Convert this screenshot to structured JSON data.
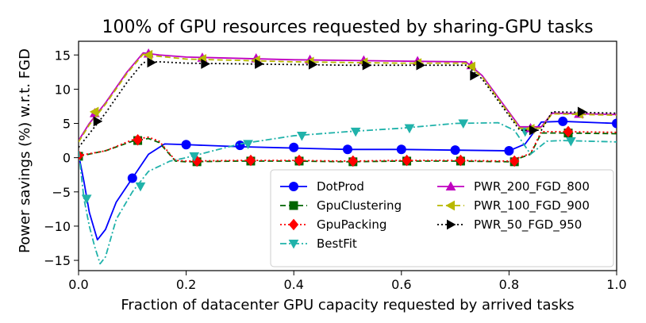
{
  "chart_data": {
    "type": "line",
    "title": "100% of GPU resources requested by sharing-GPU tasks",
    "xlabel": "Fraction of datacenter GPU capacity requested by arrived tasks",
    "ylabel": "Power savings (%) w.r.t. FGD",
    "xlim": [
      0,
      1.0
    ],
    "ylim": [
      -16.5,
      17
    ],
    "xticks": [
      0.0,
      0.2,
      0.4,
      0.6,
      0.8,
      1.0
    ],
    "xtick_labels": [
      "0.0",
      "0.2",
      "0.4",
      "0.6",
      "0.8",
      "1.0"
    ],
    "yticks": [
      -15,
      -10,
      -5,
      0,
      5,
      10,
      15
    ],
    "ytick_labels": [
      "−15",
      "−10",
      "−5",
      "0",
      "5",
      "10",
      "15"
    ],
    "legend_position": "lower-right",
    "series": [
      {
        "name": "DotProd",
        "color": "#0000ff",
        "dash": "solid",
        "marker": "circle",
        "x": [
          0.0,
          0.01,
          0.02,
          0.035,
          0.05,
          0.07,
          0.1,
          0.13,
          0.16,
          0.2,
          0.3,
          0.4,
          0.5,
          0.6,
          0.7,
          0.8,
          0.83,
          0.86,
          0.9,
          1.0
        ],
        "y": [
          0.5,
          -3.5,
          -8.0,
          -12.0,
          -10.5,
          -6.5,
          -3.0,
          0.5,
          2.0,
          1.9,
          1.6,
          1.4,
          1.2,
          1.2,
          1.1,
          1.0,
          2.0,
          5.2,
          5.3,
          5.0
        ],
        "markers_x": [
          0.1,
          0.2,
          0.3,
          0.4,
          0.5,
          0.6,
          0.7,
          0.8,
          0.9,
          1.0
        ],
        "markers_y": [
          -3.0,
          1.9,
          1.8,
          1.5,
          1.2,
          1.2,
          1.1,
          1.0,
          5.3,
          5.0
        ]
      },
      {
        "name": "GpuClustering",
        "color": "#006400",
        "dash": "dashed",
        "marker": "square",
        "x": [
          0.0,
          0.05,
          0.1,
          0.13,
          0.15,
          0.18,
          0.2,
          0.3,
          0.4,
          0.5,
          0.6,
          0.7,
          0.8,
          0.84,
          0.86,
          0.9,
          1.0
        ],
        "y": [
          0.2,
          1.0,
          2.4,
          2.8,
          2.2,
          -0.5,
          -0.6,
          -0.5,
          -0.5,
          -0.6,
          -0.5,
          -0.5,
          -0.6,
          0.5,
          3.6,
          3.6,
          3.5
        ],
        "markers_x": [
          0.0,
          0.11,
          0.22,
          0.32,
          0.41,
          0.51,
          0.61,
          0.71,
          0.81,
          0.91
        ],
        "markers_y": [
          0.2,
          2.5,
          -0.6,
          -0.5,
          -0.5,
          -0.6,
          -0.5,
          -0.5,
          -0.6,
          3.6
        ]
      },
      {
        "name": "GpuPacking",
        "color": "#ff0000",
        "dash": "dotted",
        "marker": "diamond",
        "x": [
          0.0,
          0.05,
          0.1,
          0.13,
          0.15,
          0.18,
          0.2,
          0.3,
          0.4,
          0.5,
          0.6,
          0.7,
          0.8,
          0.84,
          0.86,
          0.9,
          1.0
        ],
        "y": [
          0.3,
          1.0,
          2.6,
          3.0,
          2.4,
          -0.4,
          -0.5,
          -0.4,
          -0.4,
          -0.5,
          -0.4,
          -0.4,
          -0.5,
          0.6,
          3.8,
          3.8,
          3.7
        ],
        "markers_x": [
          0.0,
          0.11,
          0.22,
          0.32,
          0.41,
          0.51,
          0.61,
          0.71,
          0.81,
          0.91
        ],
        "markers_y": [
          0.3,
          2.6,
          -0.5,
          -0.4,
          -0.4,
          -0.5,
          -0.4,
          -0.4,
          -0.5,
          3.8
        ]
      },
      {
        "name": "BestFit",
        "color": "#20b2aa",
        "dash": "dashdot",
        "marker": "triangle-down",
        "x": [
          0.0,
          0.01,
          0.02,
          0.03,
          0.04,
          0.05,
          0.07,
          0.1,
          0.13,
          0.17,
          0.2,
          0.3,
          0.4,
          0.5,
          0.6,
          0.7,
          0.78,
          0.81,
          0.84,
          0.87,
          0.9,
          1.0
        ],
        "y": [
          1.0,
          -6.0,
          -10.0,
          -13.0,
          -15.5,
          -14.5,
          -9.0,
          -5.0,
          -2.0,
          -0.5,
          0.0,
          2.0,
          3.2,
          3.8,
          4.3,
          5.0,
          5.1,
          4.0,
          0.5,
          2.4,
          2.5,
          2.3
        ],
        "markers_x": [
          0.015,
          0.115,
          0.215,
          0.315,
          0.415,
          0.515,
          0.615,
          0.715,
          0.83,
          0.915
        ],
        "markers_y": [
          -6.0,
          -4.2,
          0.2,
          2.0,
          3.2,
          3.8,
          4.3,
          5.0,
          3.8,
          2.4
        ]
      },
      {
        "name": "PWR_200_FGD_800",
        "color": "#c000c0",
        "dash": "solid",
        "marker": "triangle-up",
        "x": [
          0.0,
          0.02,
          0.05,
          0.09,
          0.12,
          0.15,
          0.2,
          0.3,
          0.4,
          0.5,
          0.6,
          0.72,
          0.75,
          0.82,
          0.86,
          0.88,
          1.0
        ],
        "y": [
          2.5,
          5.0,
          8.0,
          12.5,
          15.3,
          15.0,
          14.7,
          14.5,
          14.3,
          14.2,
          14.1,
          14.0,
          12.0,
          4.5,
          4.5,
          6.5,
          6.3
        ],
        "markers_x": [
          0.03,
          0.13,
          0.23,
          0.33,
          0.43,
          0.53,
          0.63,
          0.73,
          0.84,
          0.93
        ],
        "markers_y": [
          6.5,
          15.2,
          14.6,
          14.5,
          14.3,
          14.2,
          14.1,
          13.5,
          4.3,
          6.4
        ]
      },
      {
        "name": "PWR_100_FGD_900",
        "color": "#b8b800",
        "dash": "dashed",
        "marker": "triangle-left",
        "x": [
          0.0,
          0.02,
          0.05,
          0.09,
          0.12,
          0.15,
          0.2,
          0.3,
          0.4,
          0.5,
          0.6,
          0.72,
          0.75,
          0.82,
          0.86,
          0.88,
          1.0
        ],
        "y": [
          2.3,
          4.8,
          7.8,
          12.3,
          15.1,
          14.8,
          14.4,
          14.2,
          14.0,
          13.9,
          13.8,
          13.8,
          11.8,
          4.3,
          4.3,
          6.4,
          6.2
        ],
        "markers_x": [
          0.03,
          0.13,
          0.23,
          0.33,
          0.43,
          0.53,
          0.63,
          0.73,
          0.84,
          0.93
        ],
        "markers_y": [
          6.7,
          15.0,
          14.4,
          14.2,
          14.0,
          13.9,
          13.8,
          13.3,
          4.2,
          6.4
        ]
      },
      {
        "name": "PWR_50_FGD_950",
        "color": "#000000",
        "dash": "dotted",
        "marker": "triangle-right",
        "x": [
          0.0,
          0.02,
          0.05,
          0.09,
          0.12,
          0.15,
          0.2,
          0.3,
          0.4,
          0.5,
          0.6,
          0.72,
          0.75,
          0.82,
          0.86,
          0.88,
          1.0
        ],
        "y": [
          1.5,
          3.5,
          6.5,
          11.0,
          13.9,
          14.0,
          13.8,
          13.7,
          13.6,
          13.5,
          13.5,
          13.5,
          11.5,
          4.0,
          4.0,
          6.7,
          6.5
        ],
        "markers_x": [
          0.035,
          0.135,
          0.235,
          0.335,
          0.435,
          0.535,
          0.635,
          0.735,
          0.845,
          0.935
        ],
        "markers_y": [
          5.3,
          13.9,
          13.7,
          13.7,
          13.6,
          13.5,
          13.5,
          12.0,
          4.0,
          6.7
        ]
      }
    ]
  }
}
